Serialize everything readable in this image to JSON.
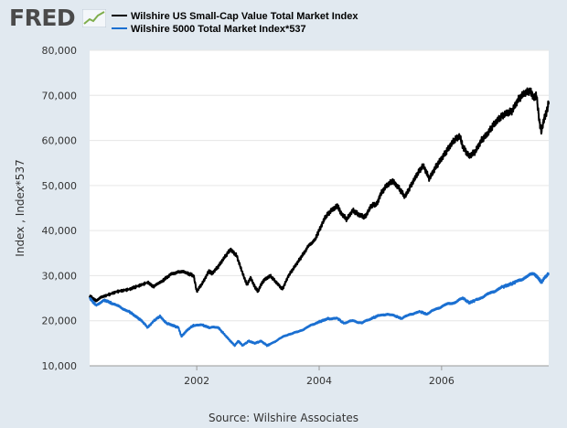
{
  "logo": {
    "text": "FRED"
  },
  "legend": [
    {
      "label": "Wilshire US Small-Cap Value Total Market Index",
      "color": "#000000"
    },
    {
      "label": "Wilshire 5000 Total Market Index*537",
      "color": "#1a6fd1"
    }
  ],
  "source": "Source: Wilshire Associates",
  "chart_data": {
    "type": "line",
    "title": "",
    "xlabel": "",
    "ylabel": "Index , Index*537",
    "xlim": [
      2000.25,
      2007.75
    ],
    "ylim": [
      10000,
      80000
    ],
    "y_ticks": [
      10000,
      20000,
      30000,
      40000,
      50000,
      60000,
      70000,
      80000
    ],
    "y_tick_labels": [
      "10,000",
      "20,000",
      "30,000",
      "40,000",
      "50,000",
      "60,000",
      "70,000",
      "80,000"
    ],
    "x_ticks": [
      2002,
      2004,
      2006
    ],
    "x_tick_labels": [
      "2002",
      "2004",
      "2006"
    ],
    "grid": "horizontal",
    "legend_position": "top",
    "series": [
      {
        "name": "Wilshire US Small-Cap Value Total Market Index",
        "color": "#000000",
        "points": [
          [
            2000.25,
            25500
          ],
          [
            2000.35,
            24500
          ],
          [
            2000.5,
            25500
          ],
          [
            2000.7,
            26500
          ],
          [
            2000.9,
            27000
          ],
          [
            2001.0,
            27500
          ],
          [
            2001.2,
            28500
          ],
          [
            2001.3,
            27500
          ],
          [
            2001.45,
            29000
          ],
          [
            2001.55,
            30000
          ],
          [
            2001.7,
            31000
          ],
          [
            2001.85,
            30500
          ],
          [
            2001.95,
            30000
          ],
          [
            2002.0,
            26500
          ],
          [
            2002.1,
            28500
          ],
          [
            2002.2,
            31000
          ],
          [
            2002.25,
            30500
          ],
          [
            2002.35,
            32000
          ],
          [
            2002.45,
            34000
          ],
          [
            2002.55,
            35800
          ],
          [
            2002.65,
            34500
          ],
          [
            2002.75,
            30500
          ],
          [
            2002.82,
            28000
          ],
          [
            2002.88,
            29500
          ],
          [
            2002.95,
            27500
          ],
          [
            2003.0,
            26500
          ],
          [
            2003.05,
            28000
          ],
          [
            2003.1,
            29000
          ],
          [
            2003.2,
            30000
          ],
          [
            2003.3,
            28500
          ],
          [
            2003.4,
            27000
          ],
          [
            2003.5,
            30000
          ],
          [
            2003.6,
            32000
          ],
          [
            2003.7,
            34000
          ],
          [
            2003.8,
            36000
          ],
          [
            2003.95,
            38500
          ],
          [
            2004.0,
            40000
          ],
          [
            2004.1,
            43000
          ],
          [
            2004.2,
            44500
          ],
          [
            2004.3,
            45500
          ],
          [
            2004.35,
            44000
          ],
          [
            2004.45,
            42500
          ],
          [
            2004.55,
            44500
          ],
          [
            2004.65,
            43500
          ],
          [
            2004.75,
            43000
          ],
          [
            2004.85,
            45500
          ],
          [
            2004.95,
            46000
          ],
          [
            2005.0,
            48000
          ],
          [
            2005.1,
            50000
          ],
          [
            2005.2,
            51000
          ],
          [
            2005.3,
            49500
          ],
          [
            2005.4,
            47500
          ],
          [
            2005.5,
            50000
          ],
          [
            2005.6,
            52500
          ],
          [
            2005.7,
            54500
          ],
          [
            2005.8,
            51500
          ],
          [
            2005.9,
            54000
          ],
          [
            2006.0,
            56000
          ],
          [
            2006.1,
            58000
          ],
          [
            2006.2,
            60000
          ],
          [
            2006.3,
            61000
          ],
          [
            2006.35,
            58500
          ],
          [
            2006.45,
            56500
          ],
          [
            2006.55,
            57500
          ],
          [
            2006.65,
            60000
          ],
          [
            2006.75,
            61500
          ],
          [
            2006.85,
            63500
          ],
          [
            2006.95,
            65000
          ],
          [
            2007.05,
            66000
          ],
          [
            2007.15,
            66500
          ],
          [
            2007.25,
            69000
          ],
          [
            2007.35,
            70500
          ],
          [
            2007.45,
            71000
          ],
          [
            2007.5,
            69500
          ],
          [
            2007.55,
            70000
          ],
          [
            2007.6,
            64000
          ],
          [
            2007.63,
            62000
          ],
          [
            2007.68,
            65000
          ],
          [
            2007.72,
            66500
          ],
          [
            2007.75,
            68500
          ]
        ]
      },
      {
        "name": "Wilshire 5000 Total Market Index*537",
        "color": "#1a6fd1",
        "points": [
          [
            2000.25,
            25000
          ],
          [
            2000.35,
            23500
          ],
          [
            2000.5,
            24500
          ],
          [
            2000.6,
            24000
          ],
          [
            2000.75,
            23000
          ],
          [
            2000.9,
            22000
          ],
          [
            2001.0,
            21000
          ],
          [
            2001.1,
            20000
          ],
          [
            2001.2,
            18500
          ],
          [
            2001.3,
            20000
          ],
          [
            2001.4,
            21000
          ],
          [
            2001.5,
            19500
          ],
          [
            2001.6,
            19000
          ],
          [
            2001.7,
            18500
          ],
          [
            2001.75,
            16500
          ],
          [
            2001.85,
            18000
          ],
          [
            2001.95,
            19000
          ],
          [
            2002.1,
            19000
          ],
          [
            2002.2,
            18500
          ],
          [
            2002.35,
            18500
          ],
          [
            2002.45,
            17000
          ],
          [
            2002.55,
            15500
          ],
          [
            2002.62,
            14500
          ],
          [
            2002.68,
            15500
          ],
          [
            2002.75,
            14500
          ],
          [
            2002.85,
            15500
          ],
          [
            2002.95,
            15000
          ],
          [
            2003.05,
            15500
          ],
          [
            2003.15,
            14500
          ],
          [
            2003.2,
            14800
          ],
          [
            2003.35,
            16000
          ],
          [
            2003.5,
            17000
          ],
          [
            2003.65,
            17500
          ],
          [
            2003.8,
            18500
          ],
          [
            2003.95,
            19500
          ],
          [
            2004.05,
            20000
          ],
          [
            2004.15,
            20500
          ],
          [
            2004.3,
            20500
          ],
          [
            2004.4,
            19500
          ],
          [
            2004.55,
            20000
          ],
          [
            2004.7,
            19500
          ],
          [
            2004.85,
            20500
          ],
          [
            2004.95,
            21000
          ],
          [
            2005.1,
            21500
          ],
          [
            2005.25,
            21000
          ],
          [
            2005.35,
            20500
          ],
          [
            2005.5,
            21500
          ],
          [
            2005.65,
            22000
          ],
          [
            2005.75,
            21500
          ],
          [
            2005.9,
            22500
          ],
          [
            2006.05,
            23500
          ],
          [
            2006.2,
            24000
          ],
          [
            2006.35,
            25000
          ],
          [
            2006.45,
            24000
          ],
          [
            2006.55,
            24500
          ],
          [
            2006.7,
            25500
          ],
          [
            2006.85,
            26500
          ],
          [
            2007.0,
            27500
          ],
          [
            2007.1,
            28000
          ],
          [
            2007.2,
            28500
          ],
          [
            2007.35,
            29500
          ],
          [
            2007.5,
            30500
          ],
          [
            2007.58,
            29500
          ],
          [
            2007.63,
            28500
          ],
          [
            2007.68,
            29500
          ],
          [
            2007.75,
            30500
          ]
        ]
      }
    ]
  }
}
